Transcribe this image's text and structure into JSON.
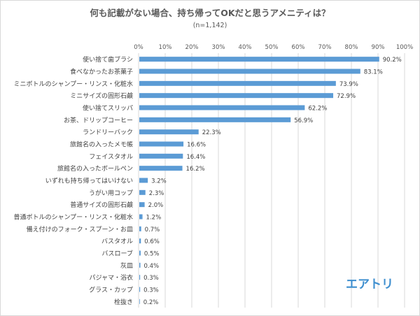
{
  "chart_data": {
    "type": "bar",
    "orientation": "horizontal",
    "title": "何も記載がない場合、持ち帰ってOKだと思うアメニティは？",
    "subtitle": "(n=1,142)",
    "xlabel": "",
    "ylabel": "",
    "xlim": [
      0,
      100
    ],
    "x_ticks": [
      "0%",
      "10%",
      "20%",
      "30%",
      "40%",
      "50%",
      "60%",
      "70%",
      "80%",
      "90%",
      "100%"
    ],
    "grid": true,
    "bar_color": "#5b9bd5",
    "categories": [
      "使い捨て歯ブラシ",
      "食べなかったお茶菓子",
      "ミニボトルのシャンプー・リンス・化粧水",
      "ミニサイズの固形石鹸",
      "使い捨てスリッパ",
      "お茶、ドリップコーヒー",
      "ランドリーバック",
      "旅館名の入ったメモ帳",
      "フェイスタオル",
      "旅館名の入ったボールペン",
      "いずれも持ち帰ってはいけない",
      "うがい用コップ",
      "普通サイズの固形石鹸",
      "普通ボトルのシャンプー・リンス・化粧水",
      "備え付けのフォーク・スプーン・お皿",
      "バスタオル",
      "バスローブ",
      "灰皿",
      "パジャマ・浴衣",
      "グラス・カップ",
      "栓抜き"
    ],
    "values": [
      90.2,
      83.1,
      73.9,
      72.9,
      62.2,
      56.9,
      22.3,
      16.6,
      16.4,
      16.2,
      3.2,
      2.3,
      2.0,
      1.2,
      0.7,
      0.6,
      0.5,
      0.4,
      0.3,
      0.3,
      0.2
    ],
    "value_labels": [
      "90.2%",
      "83.1%",
      "73.9%",
      "72.9%",
      "62.2%",
      "56.9%",
      "22.3%",
      "16.6%",
      "16.4%",
      "16.2%",
      "3.2%",
      "2.3%",
      "2.0%",
      "1.2%",
      "0.7%",
      "0.6%",
      "0.5%",
      "0.4%",
      "0.3%",
      "0.3%",
      "0.2%"
    ]
  },
  "logo": {
    "text": "エアトリ",
    "color": "#3f8fcf"
  }
}
